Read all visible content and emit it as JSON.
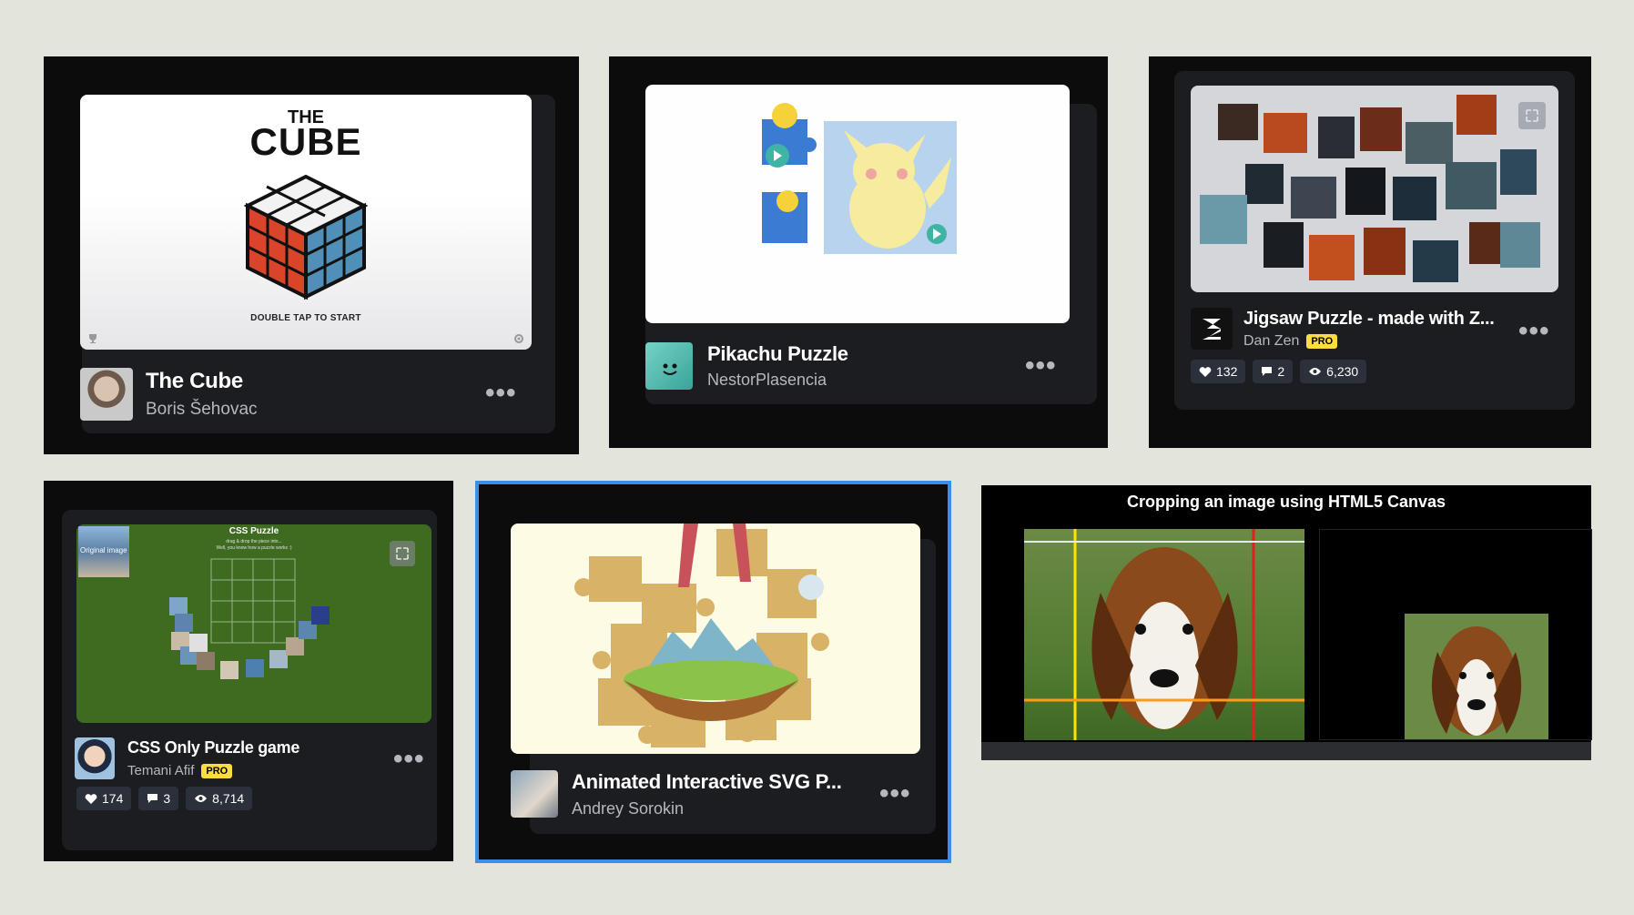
{
  "cards": [
    {
      "title": "The Cube",
      "author": "Boris Šehovac",
      "thumb": {
        "heading_small": "THE",
        "heading_big": "CUBE",
        "caption": "DOUBLE TAP TO START"
      }
    },
    {
      "title": "Pikachu Puzzle",
      "author": "NestorPlasencia"
    },
    {
      "title": "Jigsaw Puzzle - made with Z...",
      "author": "Dan Zen",
      "badge": "PRO",
      "stats": {
        "likes": "132",
        "comments": "2",
        "views": "6,230"
      }
    },
    {
      "title": "CSS Only Puzzle game",
      "author": "Temani Afif",
      "badge": "PRO",
      "stats": {
        "likes": "174",
        "comments": "3",
        "views": "8,714"
      },
      "thumb": {
        "heading": "CSS Puzzle",
        "subtext_1": "drag & drop the piece into...",
        "subtext_2": "Well, you know how a puzzle works :)",
        "inset_label": "Original image"
      }
    },
    {
      "title": "Animated Interactive SVG P...",
      "author": "Andrey Sorokin"
    },
    {
      "thumb": {
        "heading": "Cropping an image using HTML5 Canvas"
      }
    }
  ],
  "more_label": "•••",
  "colors": {
    "background": "#e3e5dc",
    "card": "#0c0c0d",
    "panel": "#1c1d21",
    "selected_border": "#3b8eea",
    "pro": "#ffdd40"
  }
}
